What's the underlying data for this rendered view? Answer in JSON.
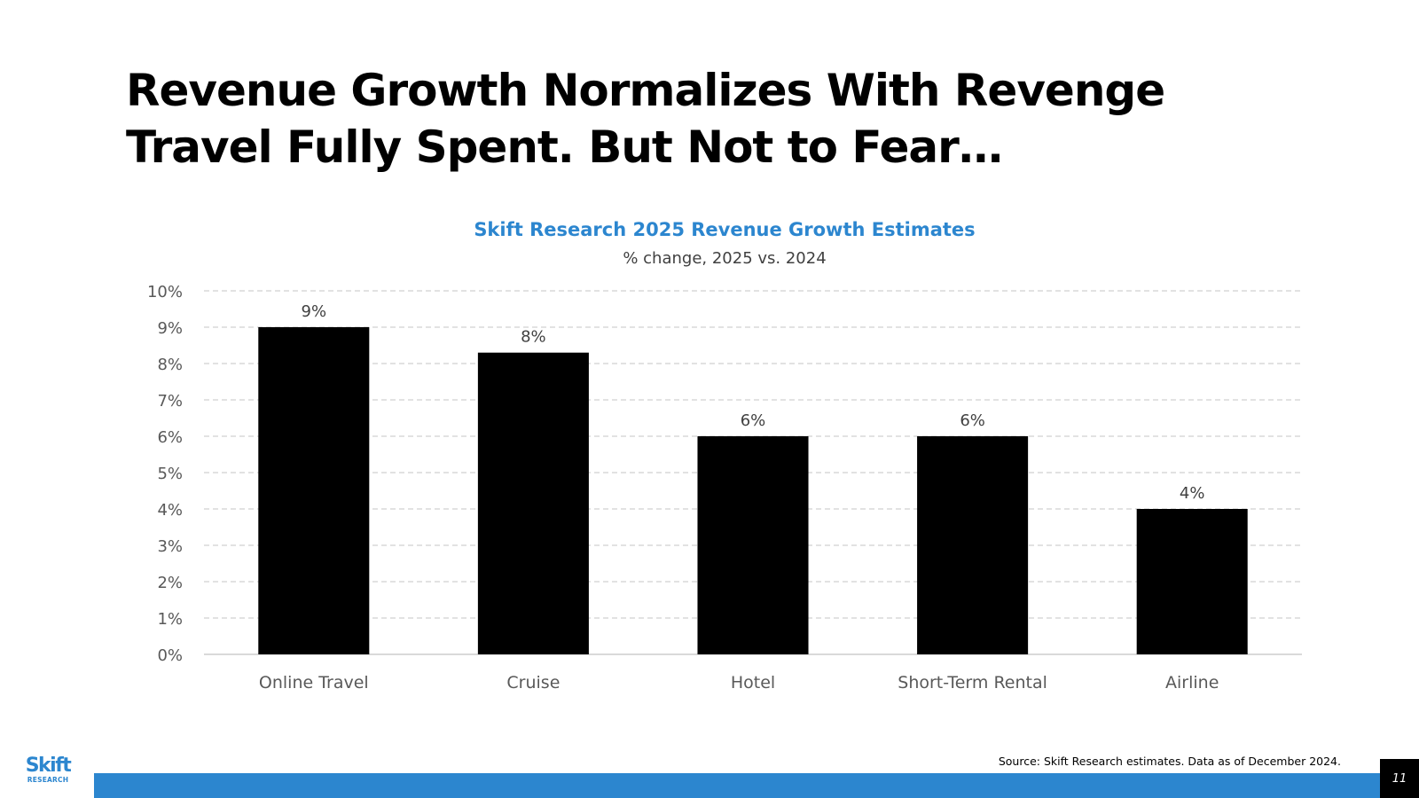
{
  "slide": {
    "title": "Revenue Growth Normalizes With Revenge Travel Fully Spent. But Not to Fear…",
    "source": "Source: Skift Research estimates. Data as of December 2024.",
    "page_number": "11",
    "logo": {
      "word": "Skift",
      "sub": "RESEARCH"
    }
  },
  "colors": {
    "accent": "#2c86cf",
    "bar": "#000000",
    "axis_text": "#595959",
    "grid": "#d9d9d9"
  },
  "chart_data": {
    "type": "bar",
    "title": "Skift Research 2025 Revenue Growth Estimates",
    "subtitle": "% change, 2025 vs. 2024",
    "categories": [
      "Online Travel",
      "Cruise",
      "Hotel",
      "Short-Term Rental",
      "Airline"
    ],
    "values": [
      9.0,
      8.3,
      6.0,
      6.0,
      4.0
    ],
    "data_labels": [
      "9%",
      "8%",
      "6%",
      "6%",
      "4%"
    ],
    "xlabel": "",
    "ylabel": "",
    "ylim": [
      0,
      10
    ],
    "yticks": [
      "0%",
      "1%",
      "2%",
      "3%",
      "4%",
      "5%",
      "6%",
      "7%",
      "8%",
      "9%",
      "10%"
    ],
    "grid": true,
    "legend": "none"
  }
}
